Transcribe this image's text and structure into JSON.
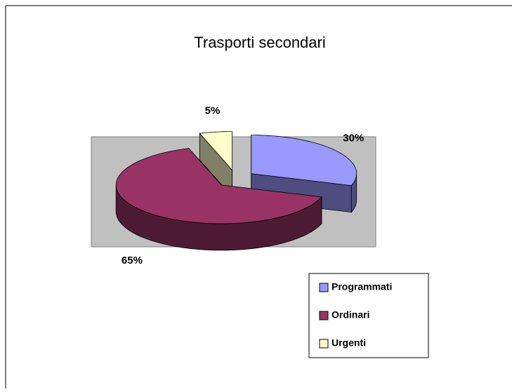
{
  "chart_data": {
    "type": "pie",
    "title": "Trasporti secondari",
    "categories": [
      "Programmati",
      "Ordinari",
      "Urgenti"
    ],
    "values": [
      30,
      65,
      5
    ],
    "value_labels": [
      "30%",
      "65%",
      "5%"
    ],
    "colors": [
      "#9999ff",
      "#993366",
      "#ffffcc"
    ],
    "legend": "right"
  }
}
